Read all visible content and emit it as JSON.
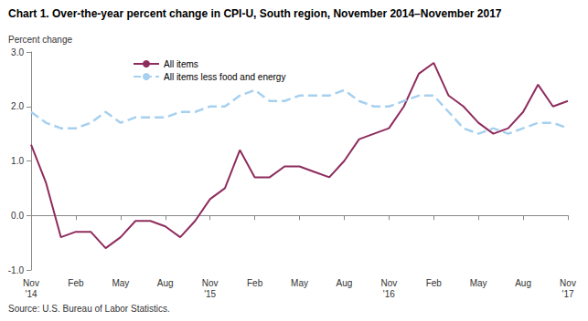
{
  "chart_data": {
    "type": "line",
    "title": "Chart 1. Over-the-year percent change in CPI-U, South region, November 2014–November 2017",
    "y_label": "Percent change",
    "source": "Source: U.S. Bureau of Labor Statistics.",
    "categories": [
      "Nov\n'14",
      null,
      null,
      "Feb",
      null,
      null,
      "May",
      null,
      null,
      "Aug",
      null,
      null,
      "Nov\n'15",
      null,
      null,
      "Feb",
      null,
      null,
      "May",
      null,
      null,
      "Aug",
      null,
      null,
      "Nov\n'16",
      null,
      null,
      "Feb",
      null,
      null,
      "May",
      null,
      null,
      "Aug",
      null,
      null,
      "Nov\n'17"
    ],
    "series": [
      {
        "name": "All items",
        "color": "#8e2c5e",
        "line_style": "solid",
        "values": [
          1.3,
          0.6,
          -0.4,
          -0.3,
          -0.3,
          -0.6,
          -0.4,
          -0.1,
          -0.1,
          -0.2,
          -0.4,
          -0.1,
          0.3,
          0.5,
          1.2,
          0.7,
          0.7,
          0.9,
          0.9,
          0.8,
          0.7,
          1.0,
          1.4,
          1.5,
          1.6,
          2.0,
          2.6,
          2.8,
          2.2,
          2.0,
          1.7,
          1.5,
          1.6,
          1.9,
          2.4,
          2.0,
          2.1
        ]
      },
      {
        "name": "All items less food and energy",
        "color": "#a6d0f0",
        "line_style": "dashed",
        "values": [
          1.9,
          1.7,
          1.6,
          1.6,
          1.7,
          1.9,
          1.7,
          1.8,
          1.8,
          1.8,
          1.9,
          1.9,
          2.0,
          2.0,
          2.2,
          2.3,
          2.1,
          2.1,
          2.2,
          2.2,
          2.2,
          2.3,
          2.1,
          2.0,
          2.0,
          2.1,
          2.2,
          2.2,
          1.9,
          1.6,
          1.5,
          1.6,
          1.5,
          1.6,
          1.7,
          1.7,
          1.6
        ]
      }
    ],
    "ylim": [
      -1,
      3
    ],
    "yticks": [
      {
        "value": -1,
        "label": "-1.0"
      },
      {
        "value": 0,
        "label": "0.0"
      },
      {
        "value": 1,
        "label": "1.0"
      },
      {
        "value": 2,
        "label": "2.0"
      },
      {
        "value": 3,
        "label": "3.0"
      }
    ],
    "grid": false,
    "legend": "top-left"
  }
}
